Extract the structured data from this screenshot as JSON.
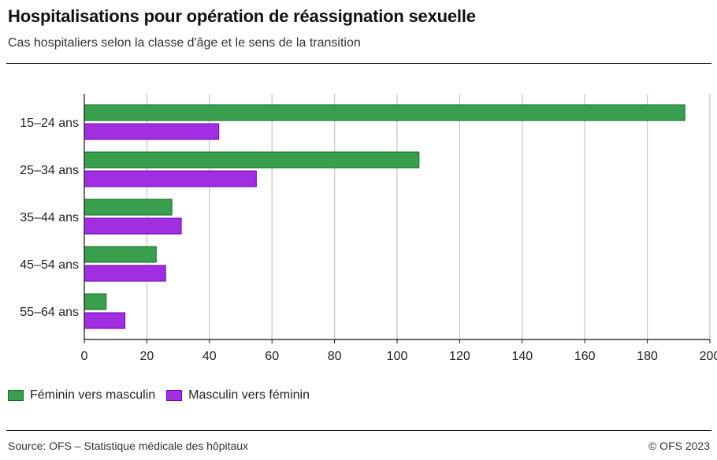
{
  "title": "Hospitalisations pour opération de réassignation sexuelle",
  "subtitle": "Cas hospitaliers selon la classe d'âge et le sens de la transition",
  "source": "Source: OFS – Statistique médicale des hôpitaux",
  "copyright": "© OFS 2023",
  "colors": {
    "feminin_vers_masculin": "#3a9e4f",
    "masculin_vers_feminin": "#a12ee0",
    "grid": "#c8c8c8",
    "axis": "#111111"
  },
  "chart_data": {
    "type": "bar",
    "orientation": "horizontal",
    "categories": [
      "15–24 ans",
      "25–34 ans",
      "35–44 ans",
      "45–54 ans",
      "55–64 ans"
    ],
    "series": [
      {
        "name": "Féminin vers masculin",
        "color": "#3a9e4f",
        "values": [
          192,
          107,
          28,
          23,
          7
        ]
      },
      {
        "name": "Masculin vers féminin",
        "color": "#a12ee0",
        "values": [
          43,
          55,
          31,
          26,
          13
        ]
      }
    ],
    "xlim": [
      0,
      200
    ],
    "xticks": [
      0,
      20,
      40,
      60,
      80,
      100,
      120,
      140,
      160,
      180,
      200
    ],
    "grid": true,
    "legend_position": "bottom-left"
  }
}
